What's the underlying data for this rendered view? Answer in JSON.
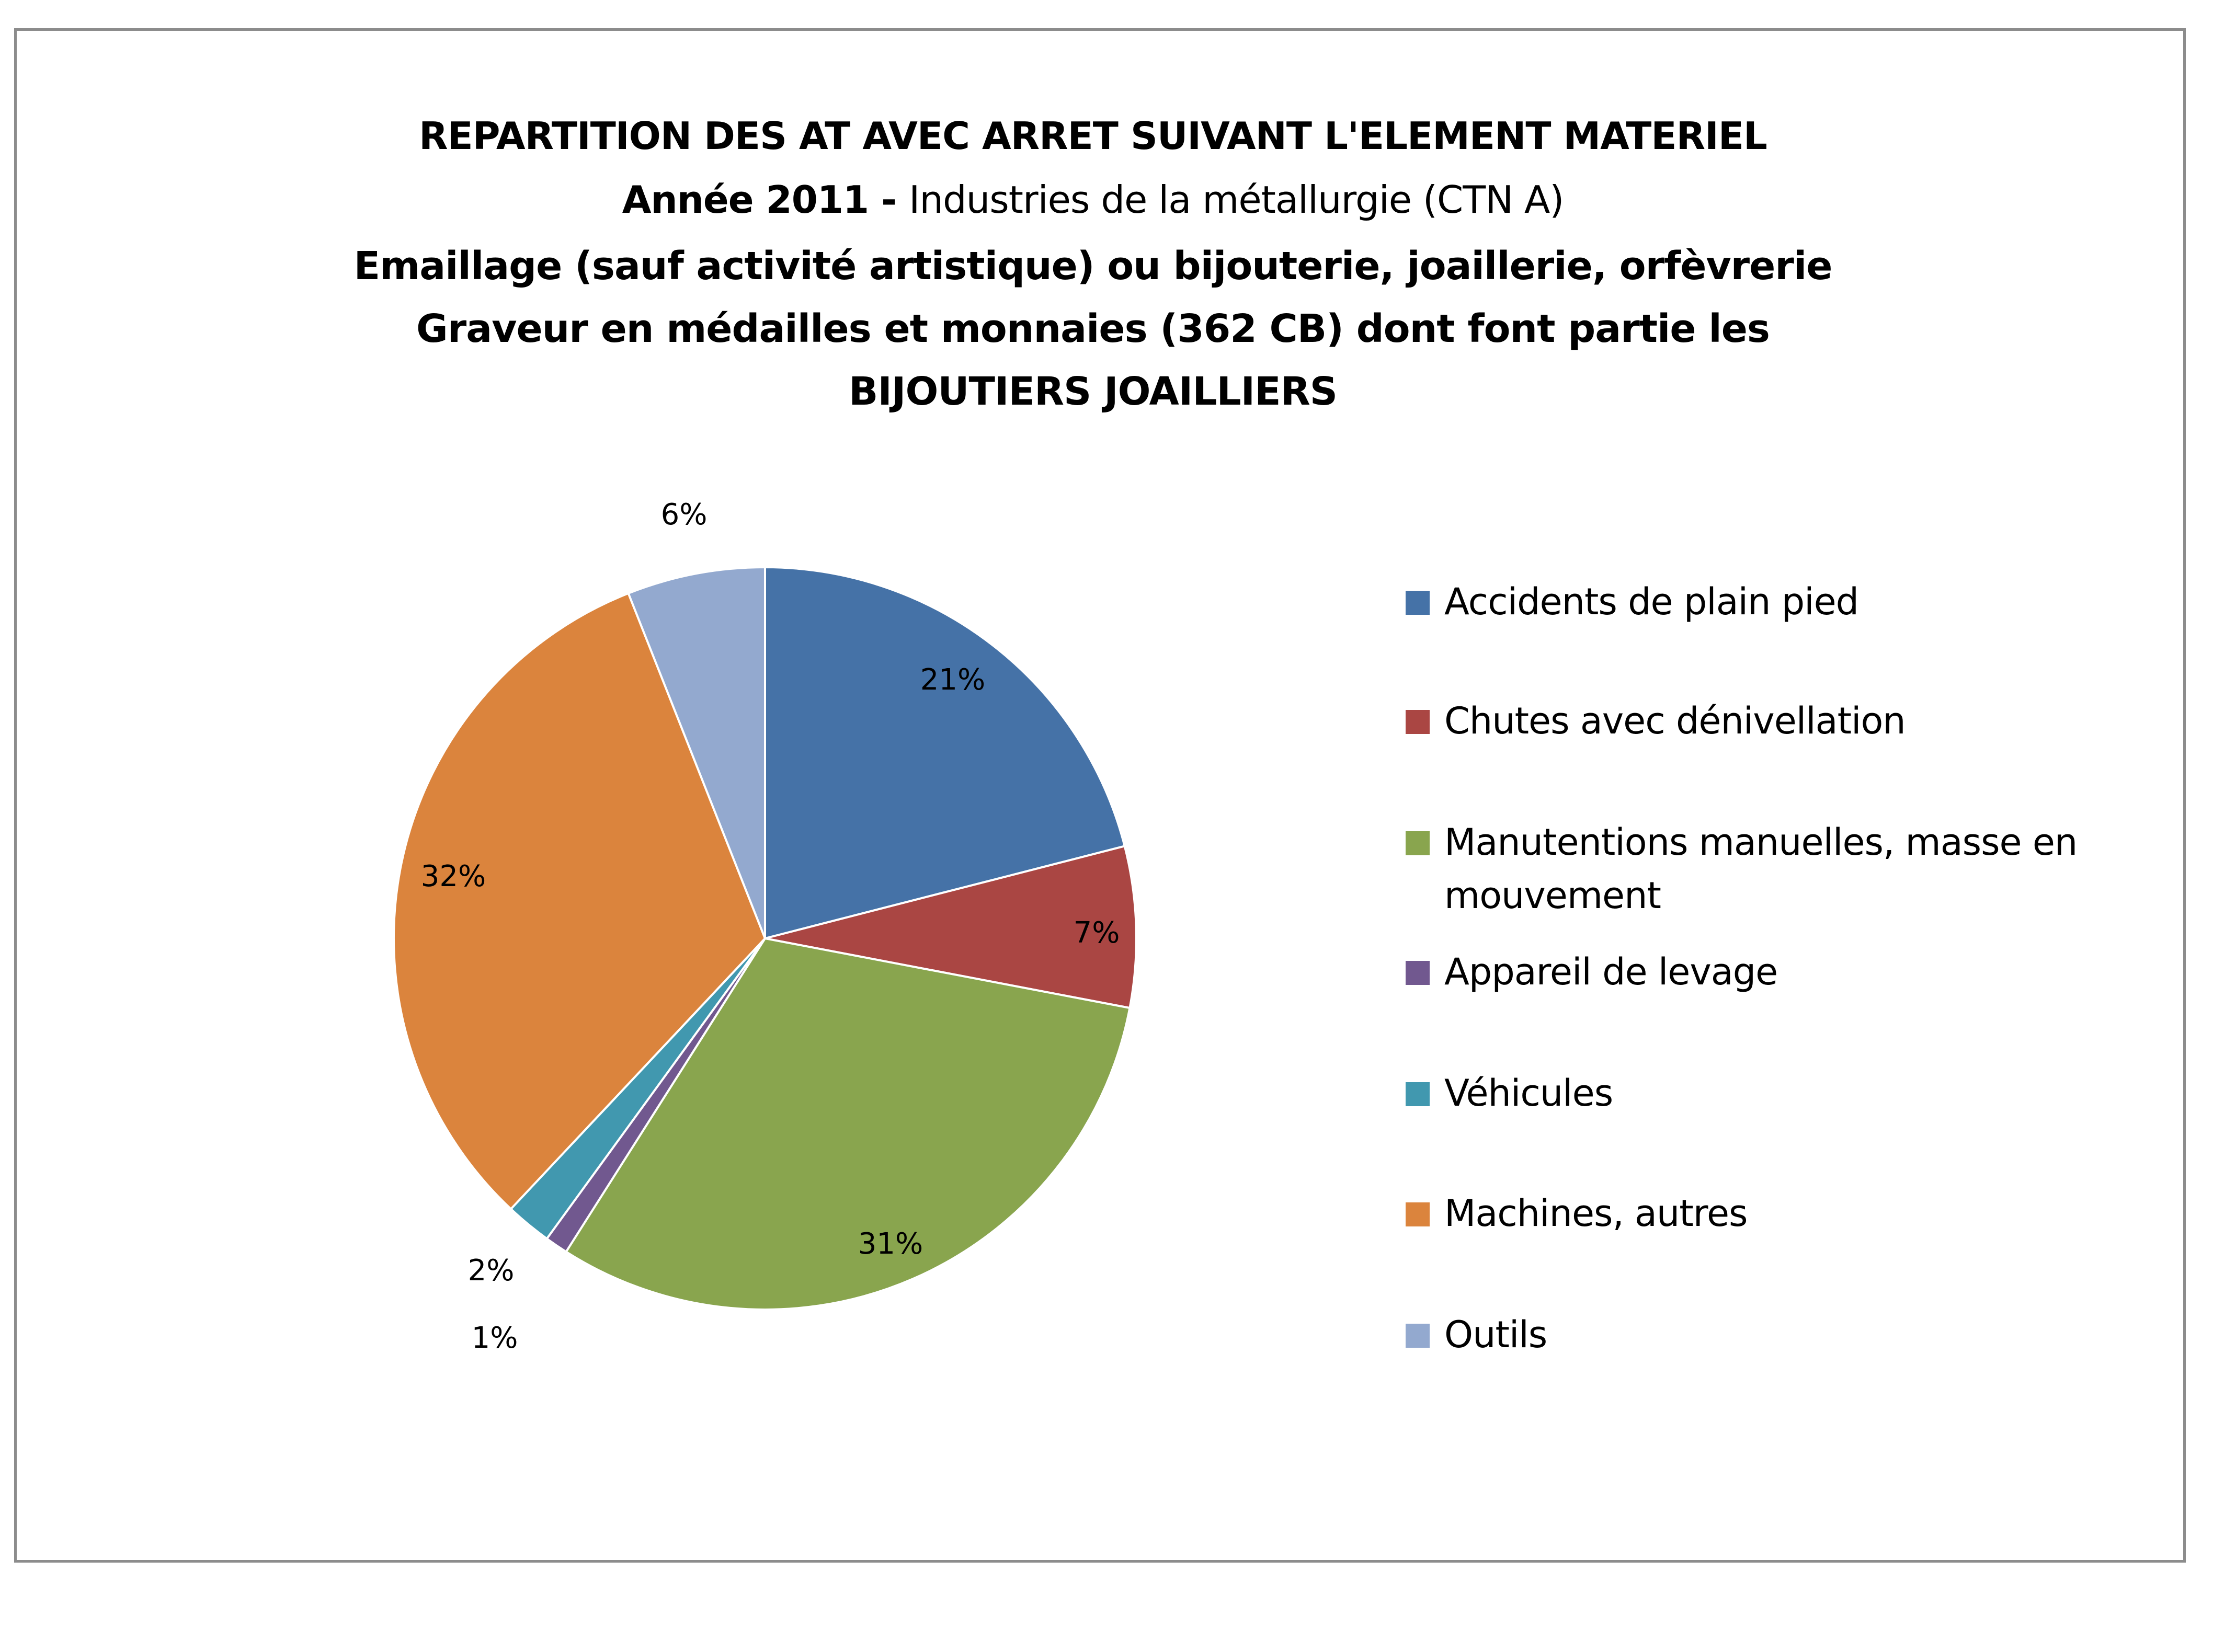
{
  "chart_data": {
    "type": "pie",
    "title": "REPARTITION DES AT AVEC ARRET SUIVANT L'ELEMENT MATERIEL",
    "subtitle_bold": "Année 2011  -",
    "subtitle_normal": "Industries de la métallurgie (CTN A)",
    "subtitle_lines": [
      "Emaillage (sauf activité artistique) ou bijouterie, joaillerie, orfèvrerie",
      "Graveur en médailles et monnaies (362 CB) dont font partie les",
      "BIJOUTIERS JOAILLIERS"
    ],
    "categories": [
      "Accidents de plain pied",
      "Chutes avec dénivellation",
      "Manutentions manuelles, masse en mouvement",
      "Appareil de levage",
      "Véhicules",
      "Machines, autres",
      "Outils"
    ],
    "legend_lines": [
      [
        "Accidents de plain pied"
      ],
      [
        "Chutes avec dénivellation"
      ],
      [
        "Manutentions manuelles, masse en",
        "mouvement"
      ],
      [
        "Appareil de levage"
      ],
      [
        "Véhicules"
      ],
      [
        "Machines, autres"
      ],
      [
        "Outils"
      ]
    ],
    "values": [
      21,
      7,
      31,
      1,
      2,
      32,
      6
    ],
    "unit": "%",
    "colors": [
      "#4572A7",
      "#AA4643",
      "#89A54E",
      "#71588F",
      "#4198AF",
      "#DB843D",
      "#93A9CF"
    ],
    "legend_position": "right"
  }
}
